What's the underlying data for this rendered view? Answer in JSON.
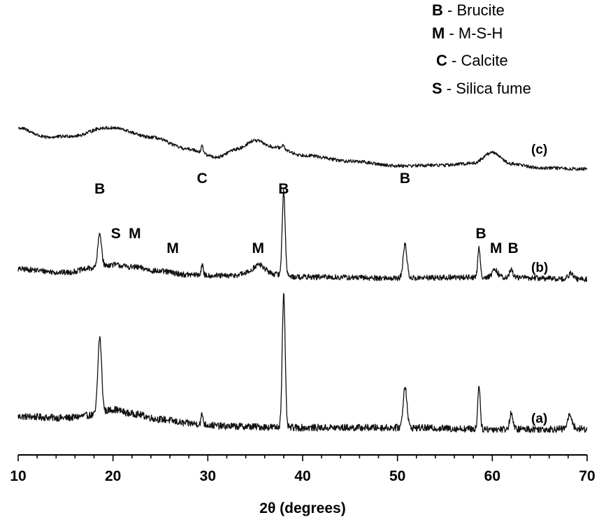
{
  "chart_data": {
    "type": "line",
    "title": "",
    "xlabel": "2θ (degrees)",
    "ylabel": "",
    "xlim": [
      10,
      70
    ],
    "xticks": [
      "10",
      "20",
      "30",
      "40",
      "50",
      "60",
      "70"
    ],
    "grid": false,
    "legend": {
      "placement": "top-right",
      "entries": [
        {
          "code": "B",
          "text": " - Brucite"
        },
        {
          "code": "M",
          "text": " - M-S-H"
        },
        {
          "code": "C",
          "text": " - Calcite"
        },
        {
          "code": "S",
          "text": " - Silica fume"
        }
      ]
    },
    "series": [
      {
        "name": "(a)",
        "baseline": [
          [
            10,
            0.08
          ],
          [
            15,
            0.07
          ],
          [
            18,
            0.09
          ],
          [
            20,
            0.13
          ],
          [
            22,
            0.1
          ],
          [
            25,
            0.06
          ],
          [
            28,
            0.03
          ],
          [
            32,
            0.01
          ],
          [
            40,
            0.0
          ],
          [
            50,
            0.0
          ],
          [
            60,
            -0.01
          ],
          [
            70,
            -0.01
          ]
        ],
        "peaks": [
          [
            18.6,
            0.55,
            0.28
          ],
          [
            29.4,
            0.07,
            0.15
          ],
          [
            38.0,
            0.95,
            0.22
          ],
          [
            50.8,
            0.3,
            0.28
          ],
          [
            58.6,
            0.32,
            0.18
          ],
          [
            62.0,
            0.12,
            0.22
          ],
          [
            68.2,
            0.1,
            0.35
          ]
        ]
      },
      {
        "name": "(b)",
        "baseline": [
          [
            10,
            0.08
          ],
          [
            15,
            0.05
          ],
          [
            18,
            0.09
          ],
          [
            20,
            0.12
          ],
          [
            22,
            0.1
          ],
          [
            25,
            0.06
          ],
          [
            28,
            0.03
          ],
          [
            32,
            0.02
          ],
          [
            35,
            0.05
          ],
          [
            40,
            0.01
          ],
          [
            50,
            0.0
          ],
          [
            60,
            0.01
          ],
          [
            70,
            -0.01
          ]
        ],
        "peaks": [
          [
            18.6,
            0.3,
            0.28
          ],
          [
            29.4,
            0.09,
            0.15
          ],
          [
            35.4,
            0.07,
            0.8
          ],
          [
            38.0,
            0.75,
            0.22
          ],
          [
            50.8,
            0.3,
            0.28
          ],
          [
            58.6,
            0.26,
            0.18
          ],
          [
            60.3,
            0.06,
            0.4
          ],
          [
            62.0,
            0.07,
            0.22
          ],
          [
            68.3,
            0.05,
            0.35
          ]
        ]
      },
      {
        "name": "(c)",
        "baseline": [
          [
            10,
            0.62
          ],
          [
            13,
            0.48
          ],
          [
            16,
            0.5
          ],
          [
            19,
            0.62
          ],
          [
            20,
            0.62
          ],
          [
            24,
            0.48
          ],
          [
            28,
            0.3
          ],
          [
            31,
            0.18
          ],
          [
            33,
            0.3
          ],
          [
            35,
            0.43
          ],
          [
            37,
            0.33
          ],
          [
            40,
            0.21
          ],
          [
            45,
            0.12
          ],
          [
            50,
            0.05
          ],
          [
            55,
            0.06
          ],
          [
            58,
            0.09
          ],
          [
            60,
            0.25
          ],
          [
            62,
            0.08
          ],
          [
            65,
            0.02
          ],
          [
            70,
            0.0
          ]
        ],
        "peaks": [
          [
            29.4,
            0.13,
            0.12
          ],
          [
            38.0,
            0.07,
            0.15
          ]
        ]
      }
    ],
    "annotations": [
      {
        "text": "B",
        "x": 18.6,
        "series": "(b)",
        "row": 0
      },
      {
        "text": "S",
        "x": 20.3,
        "series": "(b)",
        "row": 2
      },
      {
        "text": "M",
        "x": 22.3,
        "series": "(b)",
        "row": 2
      },
      {
        "text": "M",
        "x": 26.3,
        "series": "(b)",
        "row": 3
      },
      {
        "text": "C",
        "x": 29.4,
        "series": "(b)",
        "row": 1
      },
      {
        "text": "M",
        "x": 35.3,
        "series": "(b)",
        "row": 3
      },
      {
        "text": "B",
        "x": 38.0,
        "series": "(b)",
        "row": 0
      },
      {
        "text": "B",
        "x": 50.8,
        "series": "(b)",
        "row": 1
      },
      {
        "text": "B",
        "x": 58.8,
        "series": "(b)",
        "row": 2
      },
      {
        "text": "M",
        "x": 60.4,
        "series": "(b)",
        "row": 3
      },
      {
        "text": "B",
        "x": 62.2,
        "series": "(b)",
        "row": 3
      }
    ]
  }
}
